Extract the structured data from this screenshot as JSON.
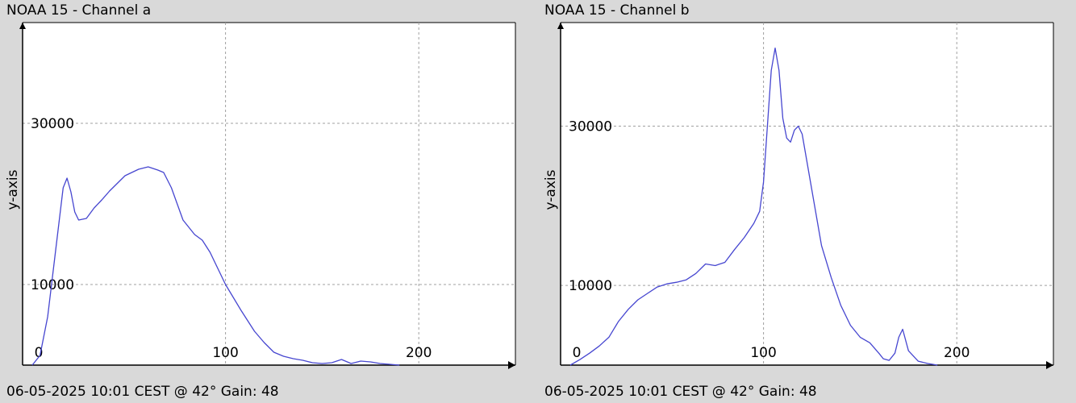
{
  "chart_data": [
    {
      "type": "line",
      "title": "NOAA 15 - Channel a",
      "ylabel": "y-axis",
      "xlabel": "",
      "footer": "06-05-2025 10:01 CEST @ 42° Gain: 48",
      "x_ticks": [
        0,
        100,
        200
      ],
      "y_ticks": [
        10000,
        30000
      ],
      "xlim": [
        -5,
        250
      ],
      "ylim": [
        0,
        42500
      ],
      "grid": true,
      "line_color": "#4646d0",
      "series": [
        {
          "x": [
            0,
            4,
            8,
            12,
            16,
            18,
            20,
            22,
            24,
            28,
            32,
            36,
            40,
            48,
            55,
            60,
            65,
            68,
            72,
            78,
            84,
            88,
            92,
            96,
            100,
            108,
            115,
            120,
            125,
            130,
            135,
            140,
            145,
            150,
            155,
            160,
            165,
            170,
            175,
            180,
            185,
            190
          ],
          "y": [
            0,
            1200,
            6000,
            14000,
            22000,
            23200,
            21500,
            19000,
            18000,
            18200,
            19500,
            20500,
            21600,
            23500,
            24300,
            24600,
            24200,
            23900,
            22000,
            18000,
            16200,
            15500,
            14000,
            12000,
            10000,
            6800,
            4200,
            2800,
            1600,
            1100,
            800,
            600,
            300,
            200,
            300,
            700,
            200,
            500,
            400,
            200,
            100,
            0
          ]
        }
      ]
    },
    {
      "type": "line",
      "title": "NOAA 15 - Channel b",
      "ylabel": "y-axis",
      "xlabel": "",
      "footer": "06-05-2025 10:01 CEST @ 42° Gain: 48",
      "x_ticks": [
        0,
        100,
        200
      ],
      "y_ticks": [
        10000,
        30000
      ],
      "xlim": [
        -5,
        250
      ],
      "ylim": [
        0,
        43000
      ],
      "grid": true,
      "line_color": "#4646d0",
      "series": [
        {
          "x": [
            0,
            5,
            10,
            15,
            20,
            25,
            30,
            35,
            40,
            45,
            50,
            55,
            60,
            65,
            70,
            75,
            80,
            85,
            90,
            95,
            98,
            100,
            102,
            104,
            106,
            108,
            110,
            112,
            114,
            116,
            118,
            120,
            125,
            130,
            135,
            140,
            145,
            150,
            155,
            160,
            162,
            165,
            168,
            170,
            172,
            175,
            180,
            185,
            190
          ],
          "y": [
            0,
            700,
            1500,
            2400,
            3500,
            5500,
            7000,
            8200,
            9000,
            9800,
            10200,
            10400,
            10700,
            11500,
            12700,
            12500,
            12900,
            14500,
            16000,
            17800,
            19300,
            23000,
            30000,
            37000,
            39800,
            37000,
            31000,
            28500,
            28000,
            29500,
            30000,
            29000,
            22000,
            15000,
            11000,
            7500,
            5000,
            3500,
            2800,
            1400,
            800,
            600,
            1500,
            3500,
            4500,
            1800,
            500,
            200,
            0
          ]
        }
      ]
    }
  ]
}
